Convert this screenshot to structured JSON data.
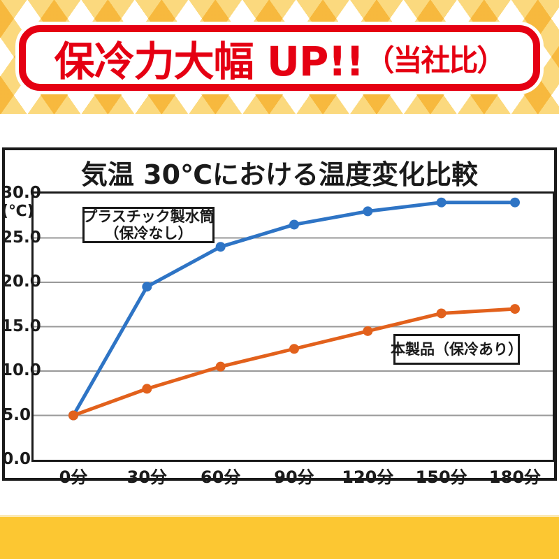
{
  "banner": {
    "text_main": "保冷力大幅 UP!!",
    "text_sub": "（当社比）",
    "accent_color": "#e50012"
  },
  "legend_boxes": {
    "plastic": {
      "line1": "プラスチック製水筒",
      "line2": "（保冷なし）"
    },
    "product": {
      "label": "本製品（保冷あり）"
    }
  },
  "colors": {
    "banner_red": "#e50012",
    "series_blue": "#2e74c5",
    "series_orange": "#e2611c",
    "grid_gray": "#999999",
    "axis_black": "#1a1a1a",
    "pattern_light": "#fbd97e",
    "pattern_dark": "#f7b93e",
    "bottom_band_yellow": "#fcc732"
  },
  "chart_data": {
    "type": "line",
    "title": "気温 30℃における温度変化比較",
    "x_categories": [
      "0分",
      "30分",
      "60分",
      "90分",
      "120分",
      "150分",
      "180分"
    ],
    "y_unit": "(℃)",
    "ylim": [
      0,
      30
    ],
    "ytick_values": [
      30,
      25,
      20,
      15,
      10,
      5,
      0
    ],
    "ytick_labels": [
      "30.0",
      "25.0",
      "20.0",
      "15.0",
      "10.0",
      "5.0",
      "0.0"
    ],
    "grid": true,
    "legend_position": "inline-boxes",
    "series": [
      {
        "name": "プラスチック製水筒（保冷なし）",
        "color": "#2e74c5",
        "values": [
          5.0,
          19.5,
          24.0,
          26.5,
          28.0,
          29.0,
          29.0
        ]
      },
      {
        "name": "本製品（保冷あり）",
        "color": "#e2611c",
        "values": [
          5.0,
          8.0,
          10.5,
          12.5,
          14.5,
          16.5,
          17.0
        ]
      }
    ]
  }
}
